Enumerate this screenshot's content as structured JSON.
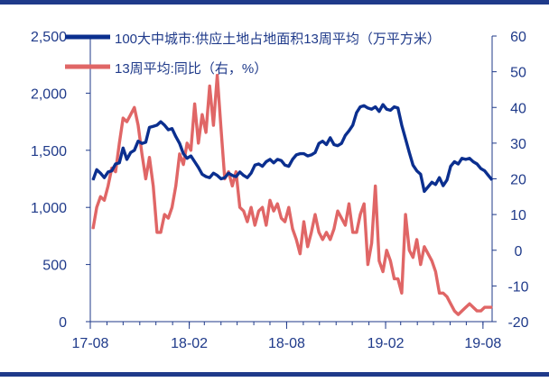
{
  "colors": {
    "accent_bar": "#1f3a8a",
    "area_series": "#0b2f8f",
    "yoy_series": "#e06666",
    "axis": "#1f3a8a",
    "tick_text": "#1f3a8a"
  },
  "chart_data": {
    "type": "line",
    "title": "",
    "xlabel": "",
    "ylabel": "",
    "grid": false,
    "legend_placement": "top",
    "x_ticks": [
      "17-08",
      "18-02",
      "18-08",
      "19-02",
      "19-08"
    ],
    "left_axis": {
      "ylim": [
        0,
        2500
      ],
      "ticks": [
        "0",
        "500",
        "1,000",
        "1,500",
        "2,000",
        "2,500"
      ]
    },
    "right_axis": {
      "ylim": [
        -20,
        60
      ],
      "ticks": [
        "-20",
        "-10",
        "0",
        "10",
        "20",
        "30",
        "40",
        "50",
        "60"
      ]
    },
    "series": [
      {
        "name": "100大中城市:供应土地占地面积13周平均（万平方米）",
        "axis": "left",
        "x": [
          "2017-08-06",
          "2017-08-13",
          "2017-08-20",
          "2017-08-27",
          "2017-09-03",
          "2017-09-10",
          "2017-09-17",
          "2017-09-24",
          "2017-10-01",
          "2017-10-08",
          "2017-10-15",
          "2017-10-22",
          "2017-10-29",
          "2017-11-05",
          "2017-11-12",
          "2017-11-19",
          "2017-11-26",
          "2017-12-03",
          "2017-12-10",
          "2017-12-17",
          "2017-12-24",
          "2017-12-31",
          "2018-01-07",
          "2018-01-14",
          "2018-01-21",
          "2018-01-28",
          "2018-02-04",
          "2018-02-11",
          "2018-02-18",
          "2018-02-25",
          "2018-03-04",
          "2018-03-11",
          "2018-03-18",
          "2018-03-25",
          "2018-04-01",
          "2018-04-08",
          "2018-04-15",
          "2018-04-22",
          "2018-04-29",
          "2018-05-06",
          "2018-05-13",
          "2018-05-20",
          "2018-05-27",
          "2018-06-03",
          "2018-06-10",
          "2018-06-17",
          "2018-06-24",
          "2018-07-01",
          "2018-07-08",
          "2018-07-15",
          "2018-07-22",
          "2018-07-29",
          "2018-08-05",
          "2018-08-12",
          "2018-08-19",
          "2018-08-26",
          "2018-09-02",
          "2018-09-09",
          "2018-09-16",
          "2018-09-23",
          "2018-09-30",
          "2018-10-07",
          "2018-10-14",
          "2018-10-21",
          "2018-10-28",
          "2018-11-04",
          "2018-11-11",
          "2018-11-18",
          "2018-11-25",
          "2018-12-02",
          "2018-12-09",
          "2018-12-16",
          "2018-12-23",
          "2018-12-30",
          "2019-01-06",
          "2019-01-13",
          "2019-01-20",
          "2019-01-27",
          "2019-02-03",
          "2019-02-10",
          "2019-02-17",
          "2019-02-24",
          "2019-03-03",
          "2019-03-10",
          "2019-03-17",
          "2019-03-24",
          "2019-03-31",
          "2019-04-07",
          "2019-04-14",
          "2019-04-21",
          "2019-04-28",
          "2019-05-05",
          "2019-05-12",
          "2019-05-19",
          "2019-05-26",
          "2019-06-02",
          "2019-06-09",
          "2019-06-16",
          "2019-06-23",
          "2019-06-30",
          "2019-07-07",
          "2019-07-14",
          "2019-07-21",
          "2019-07-28",
          "2019-08-04",
          "2019-08-11",
          "2019-08-18"
        ],
        "values": [
          1240,
          1330,
          1300,
          1260,
          1310,
          1320,
          1380,
          1390,
          1520,
          1420,
          1480,
          1500,
          1580,
          1560,
          1570,
          1700,
          1710,
          1720,
          1750,
          1720,
          1680,
          1690,
          1620,
          1560,
          1470,
          1430,
          1450,
          1400,
          1350,
          1290,
          1270,
          1260,
          1300,
          1280,
          1250,
          1260,
          1300,
          1280,
          1270,
          1310,
          1280,
          1260,
          1300,
          1370,
          1380,
          1360,
          1400,
          1420,
          1390,
          1420,
          1410,
          1370,
          1360,
          1420,
          1460,
          1470,
          1470,
          1450,
          1460,
          1480,
          1560,
          1580,
          1550,
          1610,
          1550,
          1540,
          1560,
          1630,
          1670,
          1720,
          1830,
          1880,
          1890,
          1870,
          1860,
          1880,
          1840,
          1900,
          1860,
          1850,
          1880,
          1870,
          1720,
          1600,
          1480,
          1370,
          1320,
          1290,
          1140,
          1180,
          1220,
          1200,
          1260,
          1190,
          1240,
          1360,
          1400,
          1380,
          1430,
          1420,
          1430,
          1400,
          1380,
          1340,
          1320,
          1280,
          1240
        ]
      },
      {
        "name": "13周平均:同比（右，%）",
        "axis": "right",
        "x": [
          "2017-08-06",
          "2017-08-13",
          "2017-08-20",
          "2017-08-27",
          "2017-09-03",
          "2017-09-10",
          "2017-09-17",
          "2017-09-24",
          "2017-10-01",
          "2017-10-08",
          "2017-10-15",
          "2017-10-22",
          "2017-10-29",
          "2017-11-05",
          "2017-11-12",
          "2017-11-19",
          "2017-11-26",
          "2017-12-03",
          "2017-12-10",
          "2017-12-17",
          "2017-12-24",
          "2017-12-31",
          "2018-01-07",
          "2018-01-14",
          "2018-01-21",
          "2018-01-28",
          "2018-02-04",
          "2018-02-11",
          "2018-02-18",
          "2018-02-25",
          "2018-03-04",
          "2018-03-11",
          "2018-03-18",
          "2018-03-25",
          "2018-04-01",
          "2018-04-08",
          "2018-04-15",
          "2018-04-22",
          "2018-04-29",
          "2018-05-06",
          "2018-05-13",
          "2018-05-20",
          "2018-05-27",
          "2018-06-03",
          "2018-06-10",
          "2018-06-17",
          "2018-06-24",
          "2018-07-01",
          "2018-07-08",
          "2018-07-15",
          "2018-07-22",
          "2018-07-29",
          "2018-08-05",
          "2018-08-12",
          "2018-08-19",
          "2018-08-26",
          "2018-09-02",
          "2018-09-09",
          "2018-09-16",
          "2018-09-23",
          "2018-09-30",
          "2018-10-07",
          "2018-10-14",
          "2018-10-21",
          "2018-10-28",
          "2018-11-04",
          "2018-11-11",
          "2018-11-18",
          "2018-11-25",
          "2018-12-02",
          "2018-12-09",
          "2018-12-16",
          "2018-12-23",
          "2018-12-30",
          "2019-01-06",
          "2019-01-13",
          "2019-01-20",
          "2019-01-27",
          "2019-02-03",
          "2019-02-10",
          "2019-02-17",
          "2019-02-24",
          "2019-03-03",
          "2019-03-10",
          "2019-03-17",
          "2019-03-24",
          "2019-03-31",
          "2019-04-07",
          "2019-04-14",
          "2019-04-21",
          "2019-04-28",
          "2019-05-05",
          "2019-05-12",
          "2019-05-19",
          "2019-05-26",
          "2019-06-02",
          "2019-06-09",
          "2019-06-16",
          "2019-06-23",
          "2019-06-30",
          "2019-07-07",
          "2019-07-14",
          "2019-07-21",
          "2019-07-28",
          "2019-08-04",
          "2019-08-11",
          "2019-08-18"
        ],
        "values": [
          6,
          12,
          15,
          14,
          18,
          23,
          22,
          30,
          37,
          36,
          38,
          40,
          35,
          27,
          20,
          26,
          18,
          5,
          5,
          10,
          9,
          12,
          18,
          27,
          24,
          30,
          28,
          41,
          30,
          38,
          33,
          46,
          35,
          49,
          34,
          20,
          22,
          18,
          22,
          12,
          11,
          8,
          12,
          7,
          11,
          12,
          7,
          14,
          11,
          13,
          9,
          8,
          12,
          6,
          3,
          -1,
          8,
          1,
          5,
          10,
          5,
          3,
          5,
          3,
          6,
          11,
          9,
          7,
          13,
          5,
          5,
          10,
          13,
          -4,
          2,
          18,
          -3,
          -6,
          0,
          -3,
          -8,
          -8,
          -12,
          10,
          0,
          -2,
          3,
          -4,
          1,
          -1,
          -3,
          -6,
          -12,
          -12,
          -13,
          -15,
          -17,
          -18,
          -17,
          -16,
          -15,
          -16,
          -17,
          -17,
          -16,
          -16,
          -16
        ]
      }
    ]
  }
}
